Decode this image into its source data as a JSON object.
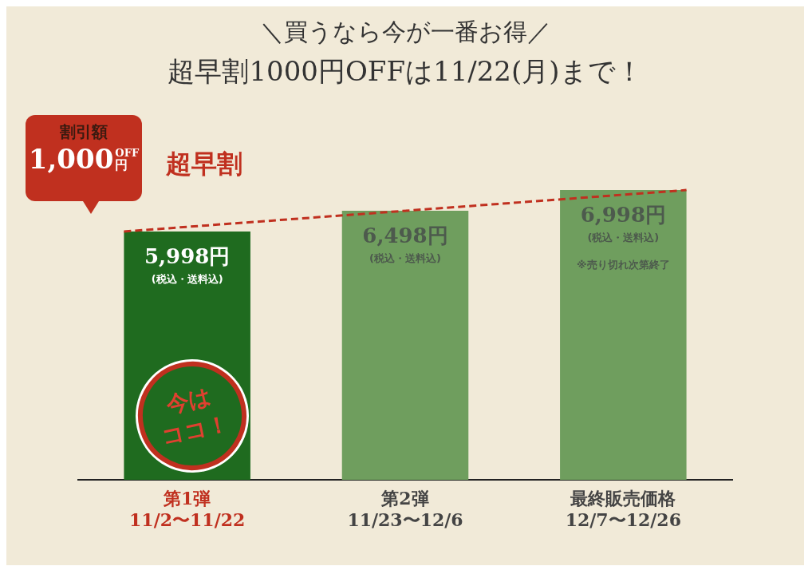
{
  "chart_data": {
    "type": "bar",
    "title": "＼買うなら今が一番お得／",
    "subtitle": "超早割1000円OFFは11/22(月)まで！",
    "categories": [
      "第1弾\n11/2〜11/22",
      "第2弾\n11/23〜12/6",
      "最終販売価格\n12/7〜12/26"
    ],
    "values": [
      5998,
      6498,
      6998
    ],
    "colors": [
      "#1f6b1f",
      "#6f9e5e",
      "#6f9e5e"
    ],
    "value_labels": [
      "5,998円",
      "6,498円",
      "6,998円"
    ],
    "annotations": [
      "割引額",
      "1,000",
      "OFF",
      "円",
      "超早割",
      "今は",
      "ココ！",
      "(税込・送料込)",
      "(税込・送料込)",
      "(税込・送料込)",
      "※売り切れ次第終了"
    ],
    "grid": false,
    "legend": false
  }
}
